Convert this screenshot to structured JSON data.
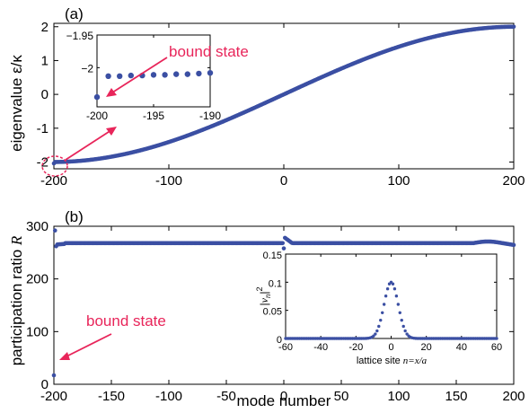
{
  "chart_data": [
    {
      "type": "scatter",
      "panel_label": "(a)",
      "xlabel": "",
      "ylabel": "eigenvalue ε/κ",
      "xlim": [
        -200,
        200
      ],
      "ylim": [
        -2.2,
        2.1
      ],
      "xticks": [
        "-200",
        "-100",
        "0",
        "100",
        "200"
      ],
      "yticks": [
        "-2",
        "-1",
        "0",
        "1",
        "2"
      ],
      "series": [
        {
          "description": "eigenvalues E_k = -2cos(pi*(k+201)/402), k = -200..200, with the lowest mode (k=-200) as a bound state at about -2.04",
          "x_range": [
            -200,
            200
          ],
          "y_range": [
            -2.0,
            2.0
          ],
          "bound_state": [
            -200,
            -2.04
          ]
        }
      ],
      "annotation": "bound state",
      "inset": {
        "xlim": [
          -200,
          -190
        ],
        "ylim": [
          -2.06,
          -1.95
        ],
        "xticks": [
          "-200",
          "-195",
          "-190"
        ],
        "yticks": [
          "−1.95",
          "−2"
        ],
        "points": [
          [
            -200,
            -2.045
          ],
          [
            -199,
            -2.013
          ],
          [
            -198,
            -2.013
          ],
          [
            -197,
            -2.012
          ],
          [
            -196,
            -2.012
          ],
          [
            -195,
            -2.011
          ],
          [
            -194,
            -2.011
          ],
          [
            -193,
            -2.01
          ],
          [
            -192,
            -2.01
          ],
          [
            -191,
            -2.009
          ],
          [
            -190,
            -2.008
          ]
        ]
      }
    },
    {
      "type": "scatter",
      "panel_label": "(b)",
      "xlabel": "mode number",
      "ylabel": "participation ratio R",
      "xlim": [
        -200,
        200
      ],
      "ylim": [
        0,
        300
      ],
      "xticks": [
        "-200",
        "-150",
        "-100",
        "-50",
        "0",
        "50",
        "100",
        "150",
        "200"
      ],
      "yticks": [
        "0",
        "100",
        "200",
        "300"
      ],
      "series": [
        {
          "description": "participation ratio about 268 for nearly all modes; -200 outlier at 17 (bound state); -199 at 292; small dip near 0 to 258 and jump to 278; ripple near 175",
          "baseline": 268,
          "outliers": [
            [
              -200,
              17
            ],
            [
              -199,
              292
            ],
            [
              -198,
              262
            ],
            [
              0,
              258
            ],
            [
              1,
              278
            ]
          ]
        }
      ],
      "annotation": "bound state",
      "inset": {
        "xlabel": "lattice site n=x/a",
        "ylabel": "|v_n|^2",
        "xlim": [
          -60,
          60
        ],
        "ylim": [
          0,
          0.15
        ],
        "xticks": [
          "-60",
          "-40",
          "-20",
          "0",
          "20",
          "40",
          "60"
        ],
        "yticks": [
          "0",
          "0.05",
          "0.1",
          "0.15"
        ],
        "description": "Gaussian-shaped bound state profile centered at n=0 with peak 0.1 and width about 4",
        "peak": [
          0,
          0.1
        ]
      }
    }
  ]
}
